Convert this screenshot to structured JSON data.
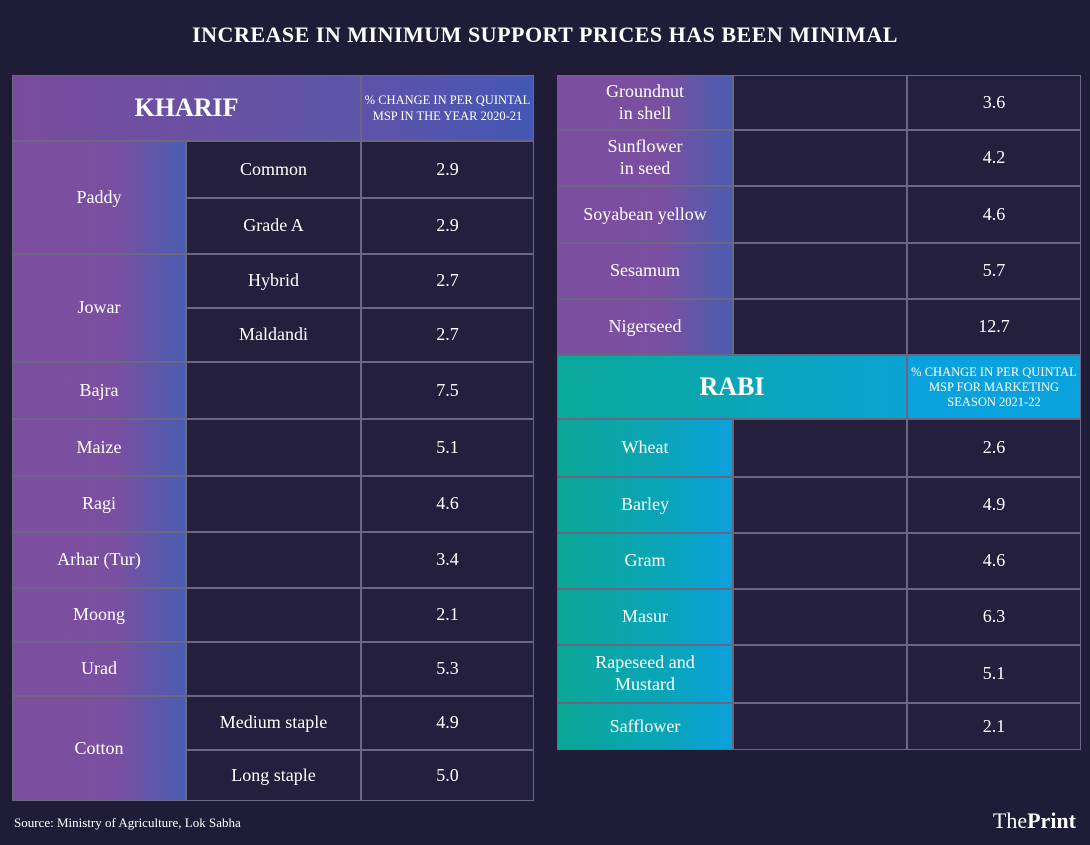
{
  "title": "INCREASE IN MINIMUM SUPPORT PRICES HAS BEEN MINIMAL",
  "kharif": {
    "heading": "KHARIF",
    "column_header": "% CHANGE IN PER QUINTAL MSP IN THE YEAR 2020-21",
    "crops": [
      {
        "name": "Paddy",
        "varieties": [
          {
            "name": "Common",
            "value": "2.9"
          },
          {
            "name": "Grade A",
            "value": "2.9"
          }
        ]
      },
      {
        "name": "Jowar",
        "varieties": [
          {
            "name": "Hybrid",
            "value": "2.7"
          },
          {
            "name": "Maldandi",
            "value": "2.7"
          }
        ]
      },
      {
        "name": "Bajra",
        "varieties": [
          {
            "name": "",
            "value": "7.5"
          }
        ]
      },
      {
        "name": "Maize",
        "varieties": [
          {
            "name": "",
            "value": "5.1"
          }
        ]
      },
      {
        "name": "Ragi",
        "varieties": [
          {
            "name": "",
            "value": "4.6"
          }
        ]
      },
      {
        "name": "Arhar (Tur)",
        "varieties": [
          {
            "name": "",
            "value": "3.4"
          }
        ]
      },
      {
        "name": "Moong",
        "varieties": [
          {
            "name": "",
            "value": "2.1"
          }
        ]
      },
      {
        "name": "Urad",
        "varieties": [
          {
            "name": "",
            "value": "5.3"
          }
        ]
      },
      {
        "name": "Cotton",
        "varieties": [
          {
            "name": "Medium staple",
            "value": "4.9"
          },
          {
            "name": "Long staple",
            "value": "5.0"
          }
        ]
      }
    ],
    "continued": [
      {
        "name": "Groundnut\nin shell",
        "value": "3.6"
      },
      {
        "name": "Sunflower\nin seed",
        "value": "4.2"
      },
      {
        "name": "Soyabean yellow",
        "value": "4.6"
      },
      {
        "name": "Sesamum",
        "value": "5.7"
      },
      {
        "name": "Nigerseed",
        "value": "12.7"
      }
    ]
  },
  "rabi": {
    "heading": "RABI",
    "column_header": "% CHANGE IN PER QUINTAL MSP FOR MARKETING SEASON 2021-22",
    "crops": [
      {
        "name": "Wheat",
        "value": "2.6"
      },
      {
        "name": "Barley",
        "value": "4.9"
      },
      {
        "name": "Gram",
        "value": "4.6"
      },
      {
        "name": "Masur",
        "value": "6.3"
      },
      {
        "name": "Rapeseed and\nMustard",
        "value": "5.1"
      },
      {
        "name": "Safflower",
        "value": "2.1"
      }
    ]
  },
  "source": "Source: Ministry of Agriculture, Lok Sabha",
  "logo": {
    "part1": "The",
    "part2": "Print"
  },
  "colors": {
    "background": "#1f1c37",
    "kharif": "#7d4e9f",
    "rabi": "#0aa2dc"
  }
}
